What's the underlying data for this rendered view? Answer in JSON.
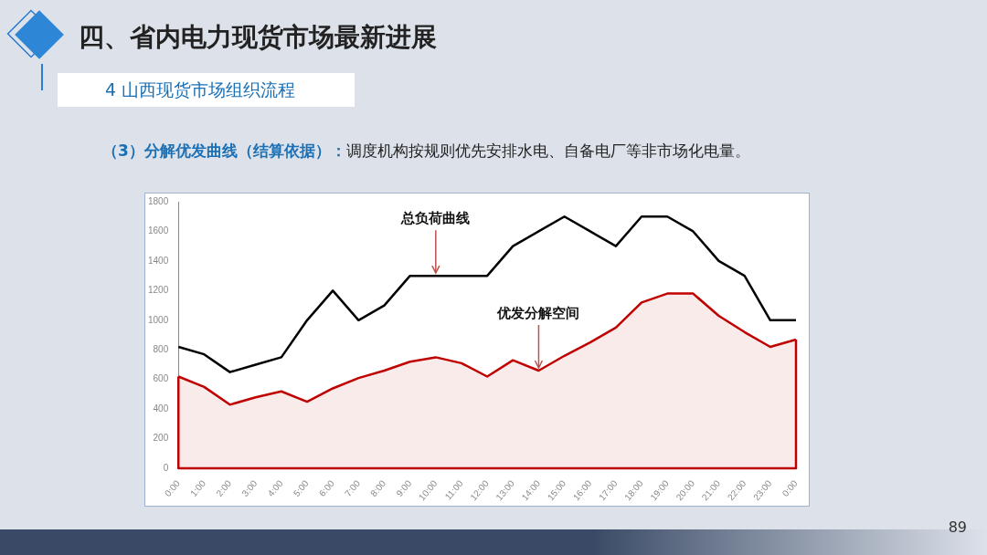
{
  "chart_data": {
    "type": "line",
    "title": "四、省内电力现货市场最新进展",
    "subtitle": "4 山西现货市场组织流程",
    "categories": [
      "0:00",
      "1:00",
      "2:00",
      "3:00",
      "4:00",
      "5:00",
      "6:00",
      "7:00",
      "8:00",
      "9:00",
      "10:00",
      "11:00",
      "12:00",
      "13:00",
      "14:00",
      "15:00",
      "16:00",
      "17:00",
      "18:00",
      "19:00",
      "20:00",
      "21:00",
      "22:00",
      "23:00",
      "0:00"
    ],
    "series": [
      {
        "color": "#000000",
        "values": [
          820,
          770,
          650,
          700,
          750,
          1000,
          1200,
          1000,
          1100,
          1300,
          1300,
          1300,
          1300,
          1500,
          1600,
          1700,
          1600,
          1500,
          1700,
          1700,
          1600,
          1400,
          1300,
          1000,
          1000
        ]
      },
      {
        "type": "area",
        "color": "#c00000",
        "values": [
          620,
          550,
          430,
          480,
          520,
          450,
          540,
          610,
          660,
          720,
          750,
          710,
          620,
          730,
          660,
          760,
          850,
          950,
          1120,
          1180,
          1180,
          1030,
          920,
          820,
          870
        ]
      }
    ],
    "ylim": [
      0,
      1800
    ],
    "yticks": [
      0,
      200,
      400,
      600,
      800,
      1000,
      1200,
      1400,
      1600,
      1800
    ],
    "grid": false,
    "legend": false,
    "marker": "none",
    "line_style": "solid",
    "annotations": [
      "（3）分解优发曲线（结算依据）：",
      "调度机构按规则优先安排水电、自备电厂等非市场化电量。",
      "89",
      {
        "text": "总负荷曲线",
        "x": "10:00",
        "y": 1300
      },
      {
        "text": "优发分解空间",
        "x": "14:00",
        "y": 660
      }
    ]
  }
}
